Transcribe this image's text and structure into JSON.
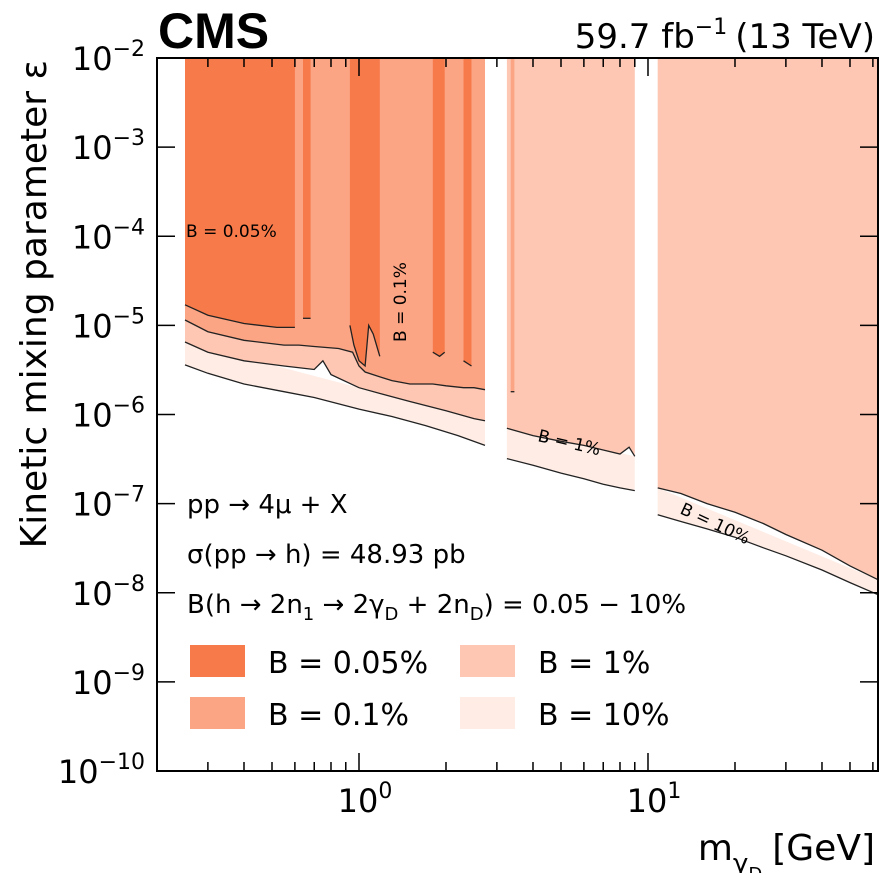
{
  "experiment_label": "CMS",
  "luminosity_label": "59.7 fb",
  "luminosity_exponent": "−1",
  "energy_label": "(13 TeV)",
  "chart_data": {
    "type": "area",
    "xscale": "log",
    "yscale": "log",
    "xlim": [
      0.2,
      62.5
    ],
    "ylim": [
      1e-10,
      0.01
    ],
    "xlabel_main": "m",
    "xlabel_sub": "γ",
    "xlabel_subsub": "D",
    "xlabel_unit": "[GeV]",
    "ylabel": "Kinetic mixing parameter ε",
    "x_ticks": [
      {
        "value": 1,
        "base": "10",
        "exp": "0"
      },
      {
        "value": 10,
        "base": "10",
        "exp": "1"
      }
    ],
    "y_ticks": [
      {
        "value": 1e-10,
        "base": "10",
        "exp": "−10"
      },
      {
        "value": 1e-09,
        "base": "10",
        "exp": "−9"
      },
      {
        "value": 1e-08,
        "base": "10",
        "exp": "−8"
      },
      {
        "value": 1e-07,
        "base": "10",
        "exp": "−7"
      },
      {
        "value": 1e-06,
        "base": "10",
        "exp": "−6"
      },
      {
        "value": 1e-05,
        "base": "10",
        "exp": "−5"
      },
      {
        "value": 0.0001,
        "base": "10",
        "exp": "−4"
      },
      {
        "value": 0.001,
        "base": "10",
        "exp": "−3"
      },
      {
        "value": 0.01,
        "base": "10",
        "exp": "−2"
      }
    ],
    "grid": false,
    "legend_placement": "bottom-left",
    "annotations": {
      "process": "pp → 4μ + X",
      "xsec": "σ(pp → h) = 48.93 pb",
      "br_prefix": "B(h → 2n",
      "br_sub1": "1",
      "br_mid": " → 2γ",
      "br_sub2": "D",
      "br_mid2": " + 2n",
      "br_sub3": "D",
      "br_suffix": ") = 0.05 − 10%"
    },
    "series": [
      {
        "name": "B = 0.05%",
        "color": "#f77a4a",
        "contour_label": "B = 0.05%",
        "regions": [
          {
            "upper": [
              [
                0.25,
                0.01
              ],
              [
                0.6,
                0.01
              ]
            ],
            "lower": [
              [
                0.25,
                1.7e-05
              ],
              [
                0.3,
                1.3e-05
              ],
              [
                0.4,
                1.05e-05
              ],
              [
                0.52,
                9.5e-06
              ],
              [
                0.6,
                9.5e-06
              ]
            ]
          },
          {
            "upper": [
              [
                0.64,
                0.01
              ],
              [
                0.68,
                0.01
              ]
            ],
            "lower": [
              [
                0.64,
                1.2e-05
              ],
              [
                0.68,
                1.2e-05
              ]
            ]
          },
          {
            "upper": [
              [
                0.93,
                0.01
              ],
              [
                1.18,
                0.01
              ]
            ],
            "lower": [
              [
                0.93,
                1e-05
              ],
              [
                0.96,
                6e-06
              ],
              [
                1.0,
                4e-06
              ],
              [
                1.05,
                3.5e-06
              ],
              [
                1.08,
                1e-05
              ],
              [
                1.12,
                8e-06
              ],
              [
                1.18,
                4.5e-06
              ]
            ]
          },
          {
            "upper": [
              [
                1.8,
                0.01
              ],
              [
                1.98,
                0.01
              ]
            ],
            "lower": [
              [
                1.8,
                5e-06
              ],
              [
                1.9,
                4.5e-06
              ],
              [
                1.98,
                5e-06
              ]
            ]
          },
          {
            "upper": [
              [
                2.3,
                0.01
              ],
              [
                2.45,
                0.01
              ]
            ],
            "lower": [
              [
                2.3,
                4e-06
              ],
              [
                2.45,
                3.5e-06
              ]
            ]
          }
        ]
      },
      {
        "name": "B = 0.1%",
        "color": "#fba585",
        "contour_label": "B = 0.1%",
        "regions": [
          {
            "upper": [
              [
                0.25,
                0.01
              ],
              [
                0.93,
                0.01
              ],
              [
                0.93,
                0.01
              ],
              [
                2.73,
                0.01
              ]
            ],
            "lower": [
              [
                0.25,
                1.15e-05
              ],
              [
                0.3,
                8.5e-06
              ],
              [
                0.4,
                6.8e-06
              ],
              [
                0.55,
                6e-06
              ],
              [
                0.62,
                6e-06
              ],
              [
                0.7,
                5.8e-06
              ],
              [
                0.85,
                5.5e-06
              ],
              [
                0.95,
                5e-06
              ],
              [
                1.0,
                3.5e-06
              ],
              [
                1.05,
                3e-06
              ],
              [
                1.2,
                2.6e-06
              ],
              [
                1.3,
                2.4e-06
              ],
              [
                1.5,
                2.2e-06
              ],
              [
                1.8,
                2.2e-06
              ],
              [
                2.0,
                2.1e-06
              ],
              [
                2.3,
                2e-06
              ],
              [
                2.5,
                2e-06
              ],
              [
                2.73,
                1.9e-06
              ]
            ]
          },
          {
            "upper": [
              [
                3.35,
                0.01
              ],
              [
                3.45,
                0.01
              ]
            ],
            "lower": [
              [
                3.35,
                1.8e-06
              ],
              [
                3.45,
                1.8e-06
              ]
            ]
          }
        ]
      },
      {
        "name": "B = 1%",
        "color": "#fdc7b3",
        "contour_label": "B = 1%",
        "regions": [
          {
            "upper": [
              [
                0.25,
                0.01
              ],
              [
                2.73,
                0.01
              ]
            ],
            "lower": [
              [
                0.25,
                6.5e-06
              ],
              [
                0.3,
                5e-06
              ],
              [
                0.4,
                4e-06
              ],
              [
                0.55,
                3.5e-06
              ],
              [
                0.7,
                3.2e-06
              ],
              [
                0.75,
                4e-06
              ],
              [
                0.8,
                2.8e-06
              ],
              [
                1.0,
                2e-06
              ],
              [
                1.2,
                1.7e-06
              ],
              [
                1.5,
                1.4e-06
              ],
              [
                2.0,
                1.1e-06
              ],
              [
                2.5,
                9e-07
              ],
              [
                2.73,
                8.5e-07
              ]
            ]
          },
          {
            "upper": [
              [
                3.25,
                0.01
              ],
              [
                9.0,
                0.01
              ]
            ],
            "lower": [
              [
                3.25,
                7e-07
              ],
              [
                4.0,
                5.8e-07
              ],
              [
                5.0,
                5e-07
              ],
              [
                6.0,
                4.5e-07
              ],
              [
                7.0,
                4e-07
              ],
              [
                8.0,
                3.6e-07
              ],
              [
                8.6,
                4.3e-07
              ],
              [
                9.0,
                3.4e-07
              ]
            ]
          },
          {
            "upper": [
              [
                10.8,
                0.01
              ],
              [
                62.5,
                0.01
              ]
            ],
            "lower": [
              [
                10.8,
                1.5e-07
              ],
              [
                13.0,
                1.3e-07
              ],
              [
                16.0,
                1e-07
              ],
              [
                20.0,
                8e-08
              ],
              [
                25.0,
                6e-08
              ],
              [
                30.0,
                4.5e-08
              ],
              [
                40.0,
                3e-08
              ],
              [
                50.0,
                2e-08
              ],
              [
                62.5,
                1.4e-08
              ]
            ]
          }
        ]
      },
      {
        "name": "B = 10%",
        "color": "#feece5",
        "contour_label": "B = 10%",
        "regions": [
          {
            "upper": [
              [
                0.25,
                6.5e-06
              ],
              [
                2.73,
                8.5e-07
              ]
            ],
            "lower": [
              [
                0.25,
                3.6e-06
              ],
              [
                0.3,
                2.9e-06
              ],
              [
                0.4,
                2.2e-06
              ],
              [
                0.55,
                1.8e-06
              ],
              [
                0.7,
                1.55e-06
              ],
              [
                1.0,
                1.15e-06
              ],
              [
                1.3,
                9.5e-07
              ],
              [
                1.7,
                7.5e-07
              ],
              [
                2.2,
                5.8e-07
              ],
              [
                2.73,
                4.5e-07
              ]
            ]
          },
          {
            "upper": [
              [
                3.25,
                7e-07
              ],
              [
                9.0,
                3.4e-07
              ]
            ],
            "lower": [
              [
                3.25,
                3.2e-07
              ],
              [
                4.0,
                2.7e-07
              ],
              [
                5.0,
                2.2e-07
              ],
              [
                6.0,
                1.9e-07
              ],
              [
                7.0,
                1.65e-07
              ],
              [
                8.0,
                1.5e-07
              ],
              [
                9.0,
                1.4e-07
              ]
            ]
          },
          {
            "upper": [
              [
                10.8,
                1.5e-07
              ],
              [
                62.5,
                1.4e-08
              ]
            ],
            "lower": [
              [
                10.8,
                7.5e-08
              ],
              [
                13.0,
                6.3e-08
              ],
              [
                16.0,
                5.2e-08
              ],
              [
                20.0,
                4.2e-08
              ],
              [
                25.0,
                3.2e-08
              ],
              [
                30.0,
                2.6e-08
              ],
              [
                40.0,
                1.8e-08
              ],
              [
                50.0,
                1.3e-08
              ],
              [
                62.5,
                9.5e-09
              ]
            ]
          }
        ]
      }
    ]
  }
}
